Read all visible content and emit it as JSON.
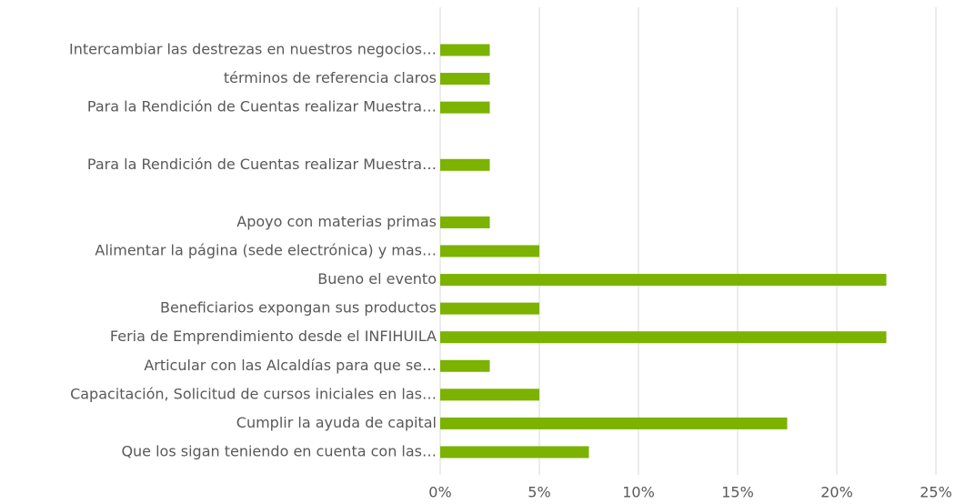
{
  "chart_data": {
    "type": "bar",
    "orientation": "horizontal",
    "categories": [
      "Intercambiar las destrezas en nuestros negocios…",
      "términos de referencia claros",
      "Para la Rendición de Cuentas realizar Muestra…",
      null,
      "Para la Rendición de Cuentas realizar Muestra…",
      null,
      "Apoyo con materias primas",
      "Alimentar la página (sede electrónica) y mas…",
      "Bueno el evento",
      "Beneficiarios expongan sus productos",
      "Feria de Emprendimiento desde el INFIHUILA",
      "Articular con las Alcaldías para que se…",
      "Capacitación, Solicitud de cursos iniciales en las…",
      "Cumplir la ayuda de capital",
      "Que los sigan teniendo en cuenta con las…"
    ],
    "values": [
      2.5,
      2.5,
      2.5,
      0,
      2.5,
      0,
      2.5,
      5,
      22.5,
      5,
      22.5,
      2.5,
      5,
      17.5,
      7.5
    ],
    "color": "#7cb200",
    "xlim": [
      0,
      25
    ],
    "xticks": [
      {
        "value": 0,
        "label": "0%"
      },
      {
        "value": 5,
        "label": "5%"
      },
      {
        "value": 10,
        "label": "10%"
      },
      {
        "value": 15,
        "label": "15%"
      },
      {
        "value": 20,
        "label": "20%"
      },
      {
        "value": 25,
        "label": "25%"
      }
    ],
    "grid": true
  }
}
